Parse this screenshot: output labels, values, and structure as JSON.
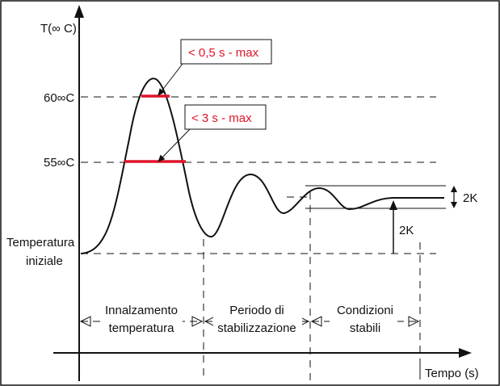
{
  "axes": {
    "y_label": "T(∞ C)",
    "x_label": "Tempo (s)"
  },
  "y_ticks": {
    "t60": "60∞C",
    "t55": "55∞C",
    "initial_line1": "Temperatura",
    "initial_line2": "iniziale"
  },
  "callouts": {
    "peak": "< 0,5 s - max",
    "rise": "< 3 s - max"
  },
  "tolerance": {
    "band": "2K",
    "offset": "2K"
  },
  "phases": [
    {
      "line1": "Innalzamento",
      "line2": "temperatura"
    },
    {
      "line1": "Periodo di",
      "line2": "stabilizzazione"
    },
    {
      "line1": "Condizioni",
      "line2": "stabili"
    }
  ],
  "colors": {
    "accent": "#e0142a",
    "line": "#111111"
  }
}
